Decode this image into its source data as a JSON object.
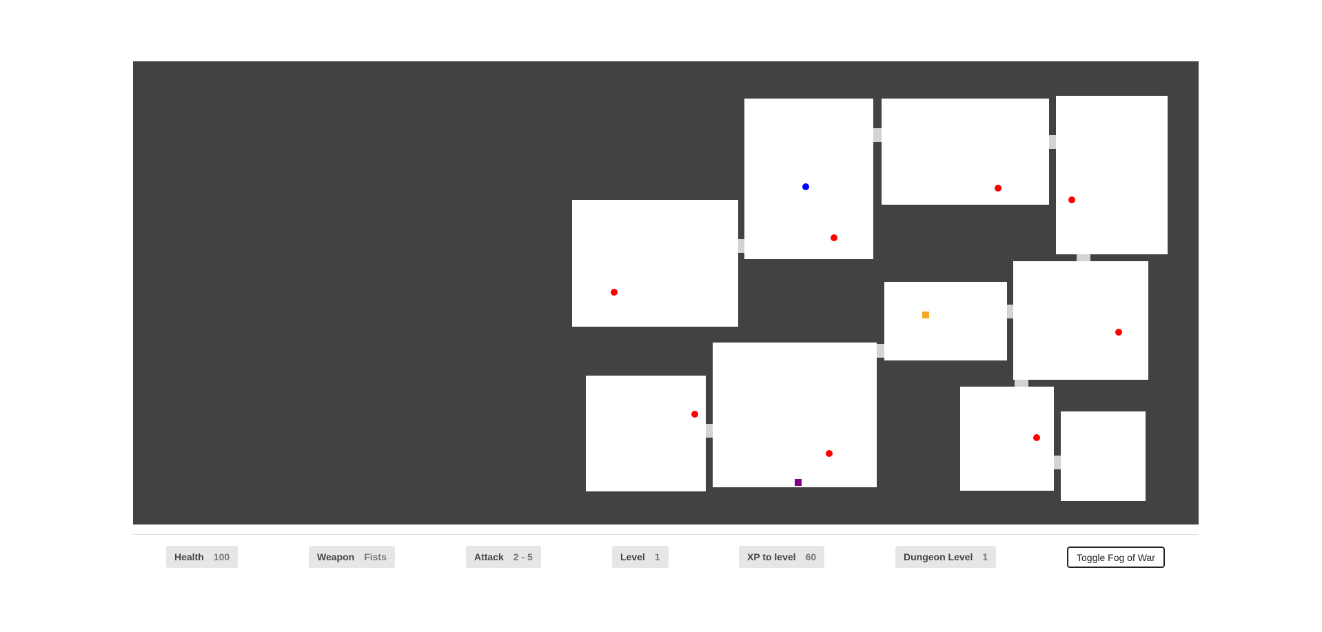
{
  "stats": [
    {
      "label": "Health",
      "value": "100"
    },
    {
      "label": "Weapon",
      "value": "Fists"
    },
    {
      "label": "Attack",
      "value": "2 - 5"
    },
    {
      "label": "Level",
      "value": "1"
    },
    {
      "label": "XP to level",
      "value": "60"
    },
    {
      "label": "Dungeon Level",
      "value": "1"
    }
  ],
  "toggle_button": "Toggle Fog of War",
  "colors": {
    "wall": "#424242",
    "floor": "#ffffff",
    "corridor": "#d3d3d3",
    "player": "#0000ff",
    "enemy": "#ff0000",
    "health_item": "#f5a623",
    "stairs": "#800080"
  }
}
